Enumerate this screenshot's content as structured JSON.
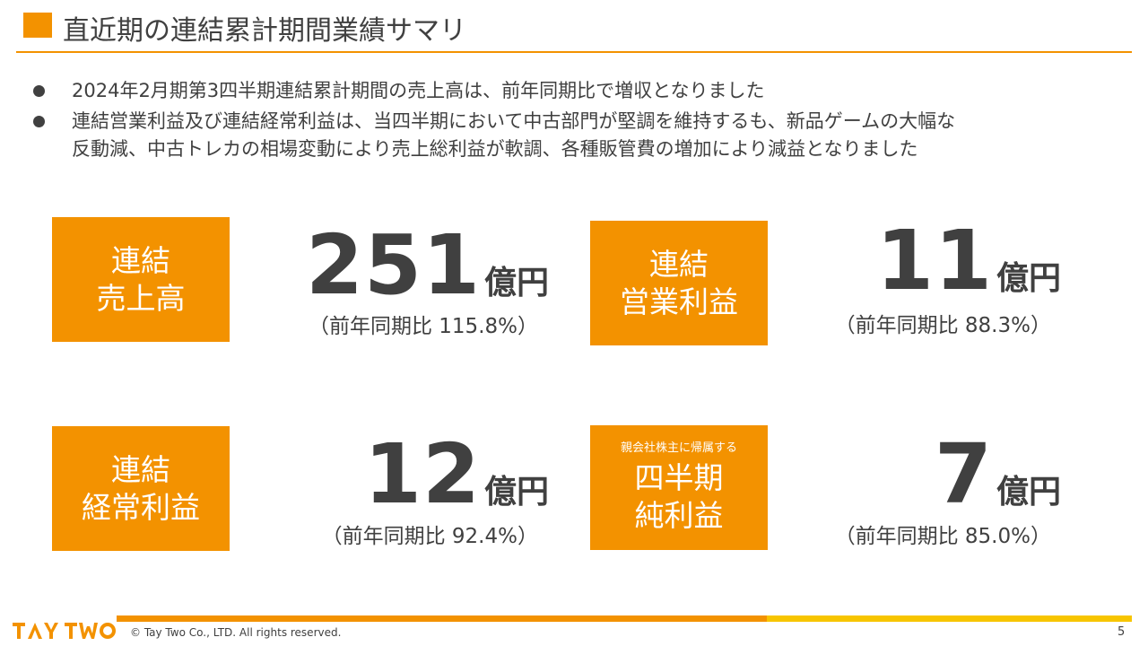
{
  "header": {
    "title": "直近期の連結累計期間業績サマリ"
  },
  "bullets": [
    "2024年2月期第3四半期連結累計期間の売上高は、前年同期比で増収となりました",
    "連結営業利益及び連結経常利益は、当四半期において中古部門が堅調を維持するも、新品ゲームの大幅な\n反動減、中古トレカの相場変動により売上総利益が軟調、各種販管費の増加により減益となりました"
  ],
  "kpis": {
    "sales": {
      "label": "連結\n売上高",
      "value": "251",
      "unit": "億円",
      "yoy": "（前年同期比 115.8%）"
    },
    "operating_profit": {
      "label": "連結\n営業利益",
      "value": "11",
      "unit": "億円",
      "yoy": "（前年同期比 88.3%）"
    },
    "ordinary_profit": {
      "label": "連結\n経常利益",
      "value": "12",
      "unit": "億円",
      "yoy": "（前年同期比 92.4%）"
    },
    "net_profit": {
      "sublabel": "親会社株主に帰属する",
      "label": "四半期\n純利益",
      "value": "7",
      "unit": "億円",
      "yoy": "（前年同期比 85.0%）"
    }
  },
  "footer": {
    "logo_text": "TAY TWO",
    "copyright": "© Tay Two Co., LTD. All rights reserved.",
    "page_number": "5"
  },
  "colors": {
    "accent": "#f39200",
    "accent_secondary": "#f7c500",
    "text": "#404040"
  }
}
